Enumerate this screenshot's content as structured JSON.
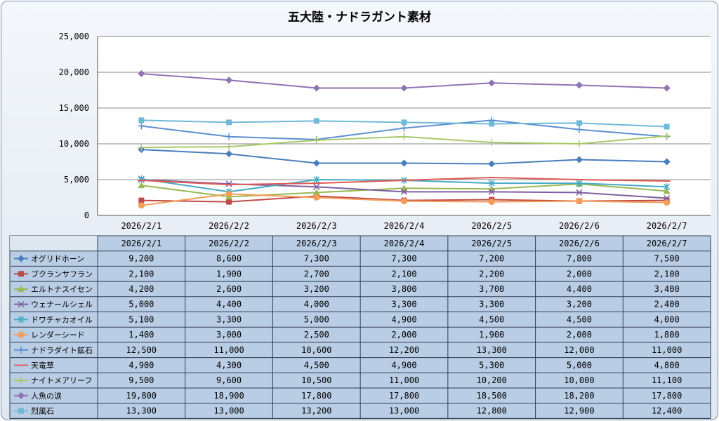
{
  "chart_data": {
    "type": "line",
    "title": "五大陸・ナドラガント素材",
    "categories": [
      "2026/2/1",
      "2026/2/2",
      "2026/2/3",
      "2026/2/4",
      "2026/2/5",
      "2026/2/6",
      "2026/2/7"
    ],
    "y_ticks": [
      "0",
      "5,000",
      "10,000",
      "15,000",
      "20,000",
      "25,000"
    ],
    "ylim": [
      0,
      25000
    ],
    "grid": true,
    "series": [
      {
        "name": "オグリドホーン",
        "marker": "diamond",
        "color": "#4a7ebb",
        "values": [
          9200,
          8600,
          7300,
          7300,
          7200,
          7800,
          7500
        ],
        "labels": [
          "9,200",
          "8,600",
          "7,300",
          "7,300",
          "7,200",
          "7,800",
          "7,500"
        ]
      },
      {
        "name": "プクランサフラン",
        "marker": "square",
        "color": "#be4b48",
        "values": [
          2100,
          1900,
          2700,
          2100,
          2200,
          2000,
          2100
        ],
        "labels": [
          "2,100",
          "1,900",
          "2,700",
          "2,100",
          "2,200",
          "2,000",
          "2,100"
        ]
      },
      {
        "name": "エルトナスイセン",
        "marker": "triangle",
        "color": "#98b954",
        "values": [
          4200,
          2600,
          3200,
          3800,
          3700,
          4400,
          3400
        ],
        "labels": [
          "4,200",
          "2,600",
          "3,200",
          "3,800",
          "3,700",
          "4,400",
          "3,400"
        ]
      },
      {
        "name": "ウェナールシェル",
        "marker": "x",
        "color": "#7d60a0",
        "values": [
          5000,
          4400,
          4000,
          3300,
          3300,
          3200,
          2400
        ],
        "labels": [
          "5,000",
          "4,400",
          "4,000",
          "3,300",
          "3,300",
          "3,200",
          "2,400"
        ]
      },
      {
        "name": "ドワチャカオイル",
        "marker": "star",
        "color": "#46aac5",
        "values": [
          5100,
          3300,
          5000,
          4900,
          4500,
          4500,
          4000
        ],
        "labels": [
          "5,100",
          "3,300",
          "5,000",
          "4,900",
          "4,500",
          "4,500",
          "4,000"
        ]
      },
      {
        "name": "レンダーシード",
        "marker": "circle",
        "color": "#f59d56",
        "values": [
          1400,
          3000,
          2500,
          2000,
          1900,
          2000,
          1800
        ],
        "labels": [
          "1,400",
          "3,000",
          "2,500",
          "2,000",
          "1,900",
          "2,000",
          "1,800"
        ]
      },
      {
        "name": "ナドラダイト鉱石",
        "marker": "plus",
        "color": "#5b8fd0",
        "values": [
          12500,
          11000,
          10600,
          12200,
          13300,
          12000,
          11000
        ],
        "labels": [
          "12,500",
          "11,000",
          "10,600",
          "12,200",
          "13,300",
          "12,000",
          "11,000"
        ]
      },
      {
        "name": "天竜草",
        "marker": "dash",
        "color": "#e15a55",
        "values": [
          4900,
          4300,
          4500,
          4900,
          5300,
          5000,
          4800
        ],
        "labels": [
          "4,900",
          "4,300",
          "4,500",
          "4,900",
          "5,300",
          "5,000",
          "4,800"
        ]
      },
      {
        "name": "ナイトメアリーフ",
        "marker": "plus",
        "color": "#a9c967",
        "values": [
          9500,
          9600,
          10500,
          11000,
          10200,
          10000,
          11100
        ],
        "labels": [
          "9,500",
          "9,600",
          "10,500",
          "11,000",
          "10,200",
          "10,000",
          "11,100"
        ]
      },
      {
        "name": "人魚の涙",
        "marker": "diamond",
        "color": "#8f73b3",
        "values": [
          19800,
          18900,
          17800,
          17800,
          18500,
          18200,
          17800
        ],
        "labels": [
          "19,800",
          "18,900",
          "17,800",
          "17,800",
          "18,500",
          "18,200",
          "17,800"
        ]
      },
      {
        "name": "烈風石",
        "marker": "square",
        "color": "#6fbad8",
        "values": [
          13300,
          13000,
          13200,
          13000,
          12800,
          12900,
          12400
        ],
        "labels": [
          "13,300",
          "13,000",
          "13,200",
          "13,000",
          "12,800",
          "12,900",
          "12,400"
        ]
      }
    ]
  }
}
